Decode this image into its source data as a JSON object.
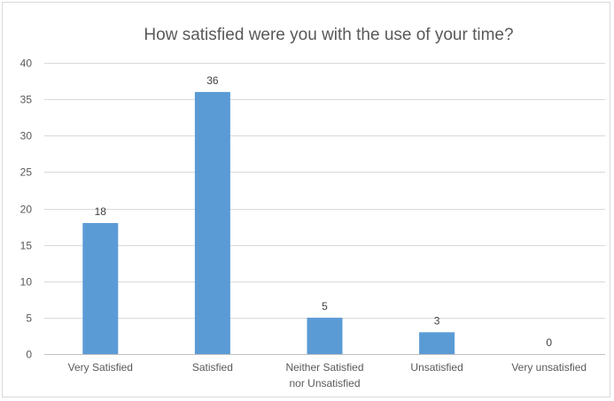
{
  "chart_data": {
    "type": "bar",
    "title": "How satisfied were you with the use of your time?",
    "categories": [
      [
        "Very Satisfied"
      ],
      [
        "Satisfied"
      ],
      [
        "Neither Satisfied",
        "nor Unsatisfied"
      ],
      [
        "Unsatisfied"
      ],
      [
        "Very unsatisfied"
      ]
    ],
    "values": [
      18,
      36,
      5,
      3,
      0
    ],
    "xlabel": "",
    "ylabel": "",
    "ylim": [
      0,
      40
    ],
    "yticks": [
      0,
      5,
      10,
      15,
      20,
      25,
      30,
      35,
      40
    ],
    "grid": true,
    "data_labels": true,
    "bar_color": "#5b9bd5"
  }
}
